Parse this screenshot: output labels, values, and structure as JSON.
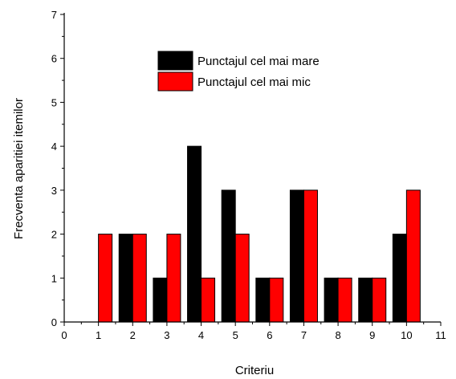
{
  "chart_data": {
    "type": "bar",
    "xlabel": "Criteriu",
    "ylabel": "Frecventa aparitiei itemilor",
    "xlim": [
      0,
      11
    ],
    "ylim": [
      0,
      7
    ],
    "xticks": [
      0,
      1,
      2,
      3,
      4,
      5,
      6,
      7,
      8,
      9,
      10,
      11
    ],
    "yticks": [
      0,
      1,
      2,
      3,
      4,
      5,
      6,
      7
    ],
    "categories": [
      1,
      2,
      3,
      4,
      5,
      6,
      7,
      8,
      9,
      10
    ],
    "legend_position": "top-center",
    "grid": false,
    "series": [
      {
        "name": "Punctajul cel mai mare",
        "color": "#000000",
        "values": [
          0,
          2,
          1,
          4,
          3,
          1,
          3,
          1,
          1,
          2
        ]
      },
      {
        "name": "Punctajul cel mai mic",
        "color": "#ff0000",
        "values": [
          2,
          2,
          2,
          1,
          2,
          1,
          3,
          1,
          1,
          3
        ]
      }
    ]
  }
}
